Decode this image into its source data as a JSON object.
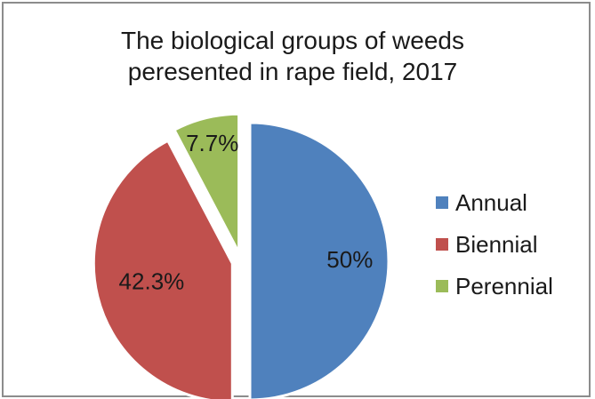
{
  "chart_data": {
    "type": "pie",
    "title_lines": [
      "The biological groups of weeds",
      "peresented in rape field, 2017"
    ],
    "slices": [
      {
        "name": "Annual",
        "value": 50,
        "label": "50%",
        "color": "#4f81bd"
      },
      {
        "name": "Biennial",
        "value": 42.3,
        "label": "42.3%",
        "color": "#c0504d"
      },
      {
        "name": "Perennial",
        "value": 7.7,
        "label": "7.7%",
        "color": "#9bbb59"
      }
    ],
    "legend_position": "right",
    "start_angle": "12 o'clock",
    "direction": "clockwise",
    "exploded": true
  }
}
